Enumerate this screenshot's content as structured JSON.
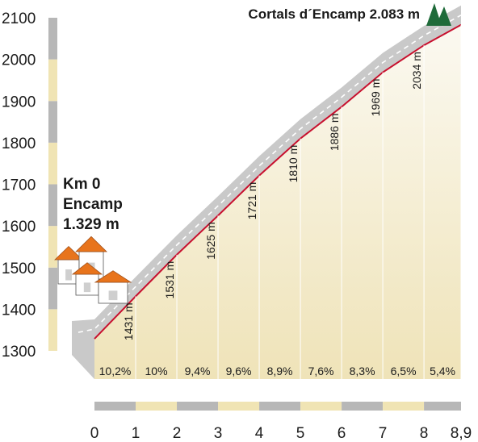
{
  "chart_data": {
    "type": "area",
    "title": "Cortals d´Encamp 2.083 m",
    "start_label": [
      "Km 0",
      "Encamp",
      "1.329 m"
    ],
    "x": [
      0,
      1,
      2,
      3,
      4,
      5,
      6,
      7,
      8,
      8.9
    ],
    "x_tick_labels": [
      "0",
      "1",
      "2",
      "3",
      "4",
      "5",
      "6",
      "7",
      "8",
      "8,9"
    ],
    "elevation": [
      1329,
      1431,
      1531,
      1625,
      1721,
      1810,
      1886,
      1969,
      2034,
      2083
    ],
    "point_labels": [
      "1431 m",
      "1531 m",
      "1625 m",
      "1721 m",
      "1810 m",
      "1886 m",
      "1969 m",
      "2034 m"
    ],
    "gradients": [
      "10,2%",
      "10%",
      "9,4%",
      "9,6%",
      "8,9%",
      "7,6%",
      "8,3%",
      "6,5%",
      "5,4%"
    ],
    "y_ticks": [
      1300,
      1400,
      1500,
      1600,
      1700,
      1800,
      1900,
      2000,
      2100
    ],
    "y_tick_labels": [
      "1300",
      "1400",
      "1500",
      "1600",
      "1700",
      "1800",
      "1900",
      "2000",
      "2100"
    ],
    "ylim": [
      1300,
      2100
    ],
    "xlim": [
      0,
      8.9
    ],
    "grid": false,
    "colors": {
      "profile_line": "#c8102e",
      "road": "#c9c9c9",
      "road_center": "#ffffff",
      "fill_top": "#fbf9f1",
      "fill_bottom": "#efe3b8",
      "scale_gray": "#b7b7b7",
      "scale_cream": "#f0e4b4",
      "tree": "#1f6b3a",
      "roof": "#e8741c"
    },
    "icons": [
      "mountain-peaks-icon",
      "village-houses-icon"
    ]
  }
}
